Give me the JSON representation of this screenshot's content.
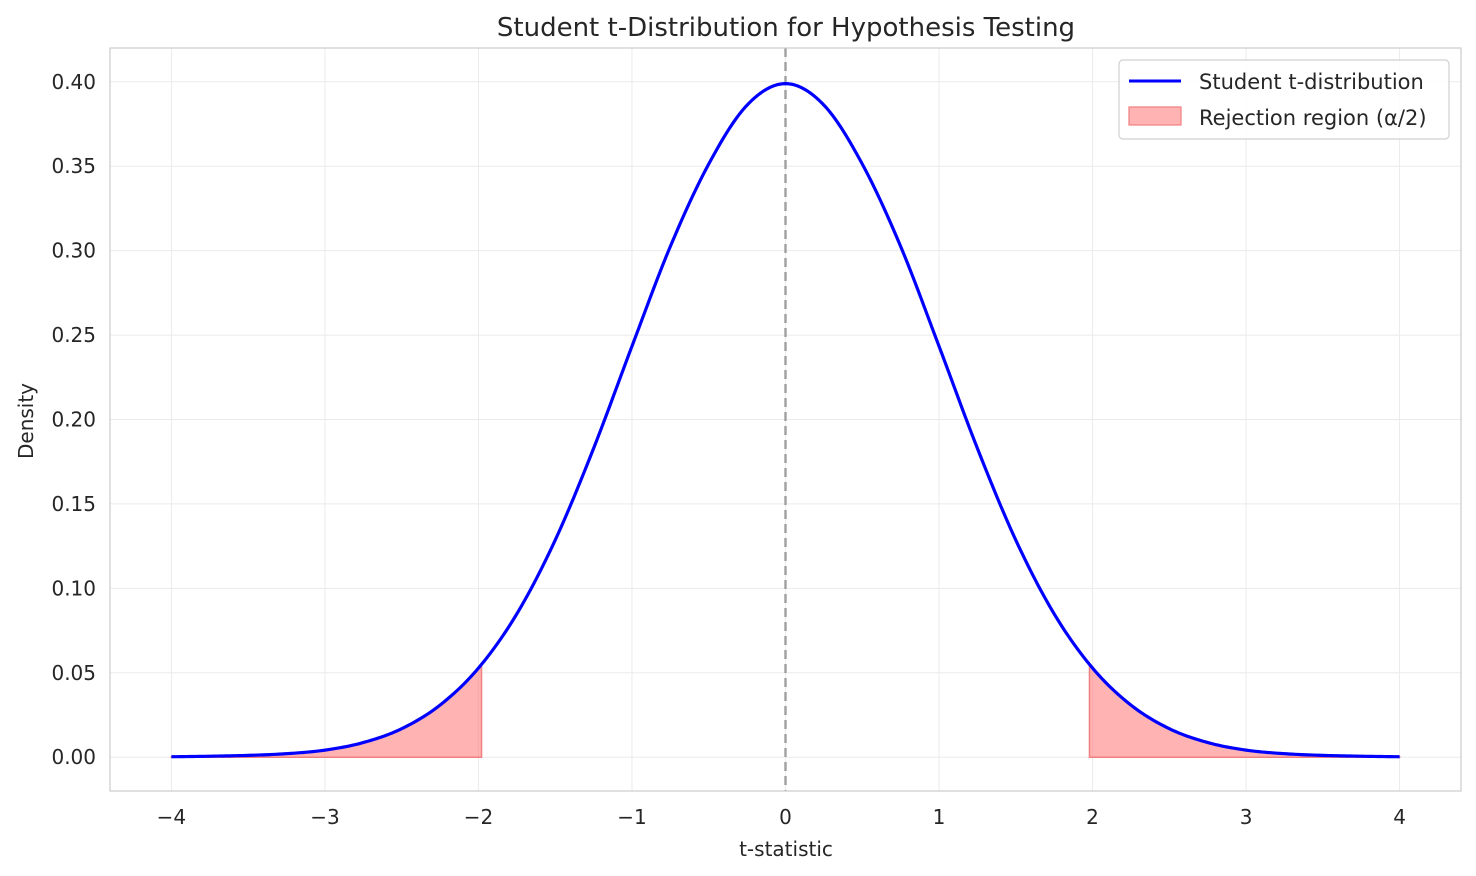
{
  "chart_data": {
    "type": "line",
    "title": "Student t-Distribution for Hypothesis Testing",
    "xlabel": "t-statistic",
    "ylabel": "Density",
    "xlim": [
      -4.4,
      4.4
    ],
    "ylim": [
      -0.02,
      0.42
    ],
    "x_ticks": [
      -4,
      -3,
      -2,
      -1,
      0,
      1,
      2,
      3,
      4
    ],
    "x_tick_labels": [
      "−4",
      "−3",
      "−2",
      "−1",
      "0",
      "1",
      "2",
      "3",
      "4"
    ],
    "y_ticks": [
      0.0,
      0.05,
      0.1,
      0.15,
      0.2,
      0.25,
      0.3,
      0.35,
      0.4
    ],
    "y_tick_labels": [
      "0.00",
      "0.05",
      "0.10",
      "0.15",
      "0.20",
      "0.25",
      "0.30",
      "0.35",
      "0.40"
    ],
    "grid": true,
    "legend_position": "top-right",
    "series": [
      {
        "name": "Student t-distribution",
        "kind": "line",
        "color": "#0000ff",
        "x": [
          -4,
          -3.75,
          -3.5,
          -3.25,
          -3,
          -2.75,
          -2.5,
          -2.25,
          -2,
          -1.75,
          -1.5,
          -1.25,
          -1,
          -0.75,
          -0.5,
          -0.25,
          0,
          0.25,
          0.5,
          0.75,
          1,
          1.25,
          1.5,
          1.75,
          2,
          2.25,
          2.5,
          2.75,
          3,
          3.25,
          3.5,
          3.75,
          4
        ],
        "y": [
          0.0003,
          0.0006,
          0.0011,
          0.0021,
          0.0042,
          0.0087,
          0.0169,
          0.0309,
          0.0528,
          0.0849,
          0.1286,
          0.1829,
          0.2434,
          0.3025,
          0.3513,
          0.3862,
          0.3989,
          0.3862,
          0.3513,
          0.3025,
          0.2434,
          0.1829,
          0.1286,
          0.0849,
          0.0528,
          0.0309,
          0.0169,
          0.0087,
          0.0042,
          0.0021,
          0.0011,
          0.0006,
          0.0003
        ]
      },
      {
        "name": "Rejection region (α/2)",
        "kind": "area",
        "color": "#ff8080",
        "edge_color": "#f08080",
        "regions": [
          {
            "x": [
              -4,
              -3.75,
              -3.5,
              -3.25,
              -3,
              -2.75,
              -2.5,
              -2.25,
              -1.98
            ],
            "y": [
              0.0003,
              0.0006,
              0.0011,
              0.0021,
              0.0042,
              0.0087,
              0.0169,
              0.0309,
              0.0561
            ]
          },
          {
            "x": [
              1.98,
              2.25,
              2.5,
              2.75,
              3,
              3.25,
              3.5,
              3.75,
              4
            ],
            "y": [
              0.0561,
              0.0309,
              0.0169,
              0.0087,
              0.0042,
              0.0021,
              0.0011,
              0.0006,
              0.0003
            ]
          }
        ]
      }
    ],
    "reference_line": {
      "x": 0,
      "color": "#a0a0a0",
      "style": "dashed"
    }
  }
}
